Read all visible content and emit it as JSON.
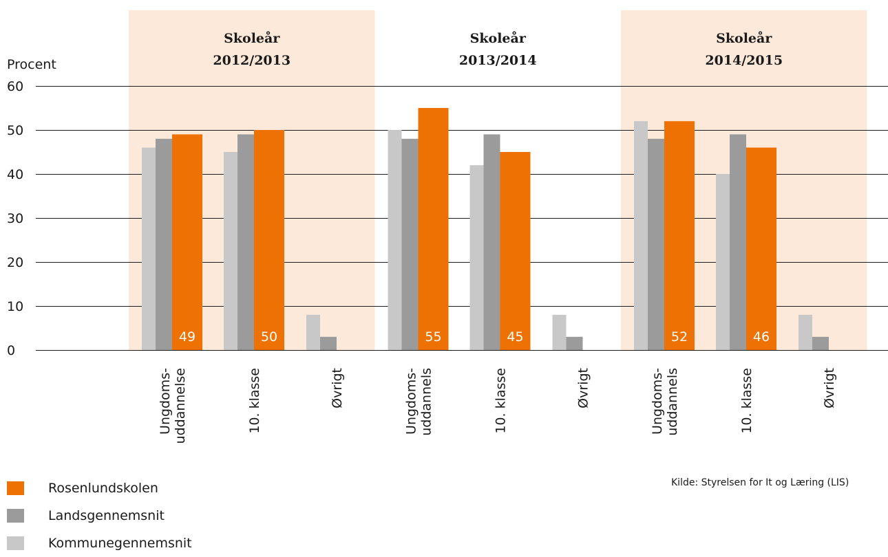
{
  "chart_data": {
    "type": "bar",
    "ylabel": "Procent",
    "ylim": [
      0,
      60
    ],
    "yticks": [
      "0",
      "10",
      "20",
      "30",
      "40",
      "50",
      "60"
    ],
    "grid": true,
    "legend_placement": "bottom-left",
    "groups": [
      {
        "label_line1": "Skoleår",
        "label_line2": "2012/2013",
        "shaded": true,
        "categories": [
          {
            "label": [
              "Ungdoms-",
              "uddannelse"
            ],
            "kommune": 46,
            "lands": 48,
            "rosen": 49
          },
          {
            "label": [
              "10. klasse"
            ],
            "kommune": 45,
            "lands": 49,
            "rosen": 50
          },
          {
            "label": [
              "Øvrigt"
            ],
            "kommune": 8,
            "lands": 3,
            "rosen": null
          }
        ]
      },
      {
        "label_line1": "Skoleår",
        "label_line2": "2013/2014",
        "shaded": false,
        "categories": [
          {
            "label": [
              "Ungdoms-",
              "uddannels"
            ],
            "kommune": 50,
            "lands": 48,
            "rosen": 55
          },
          {
            "label": [
              "10. klasse"
            ],
            "kommune": 42,
            "lands": 49,
            "rosen": 45
          },
          {
            "label": [
              "Øvrigt"
            ],
            "kommune": 8,
            "lands": 3,
            "rosen": null
          }
        ]
      },
      {
        "label_line1": "Skoleår",
        "label_line2": "2014/2015",
        "shaded": true,
        "categories": [
          {
            "label": [
              "Ungdoms-",
              "uddannels"
            ],
            "kommune": 52,
            "lands": 48,
            "rosen": 52
          },
          {
            "label": [
              "10. klasse"
            ],
            "kommune": 40,
            "lands": 49,
            "rosen": 46
          },
          {
            "label": [
              "Øvrigt"
            ],
            "kommune": 8,
            "lands": 3,
            "rosen": null
          }
        ]
      }
    ],
    "series": [
      {
        "key": "rosen",
        "name": "Rosenlundskolen",
        "color": "#ee7203"
      },
      {
        "key": "lands",
        "name": "Landsgennemsnit",
        "color": "#9b9b9b"
      },
      {
        "key": "kommune",
        "name": "Kommunegennemsnit",
        "color": "#c8c8c8"
      }
    ],
    "shade_color": "#fde9d9",
    "source": "Kilde: Styrelsen for It og Læring (LIS)"
  }
}
